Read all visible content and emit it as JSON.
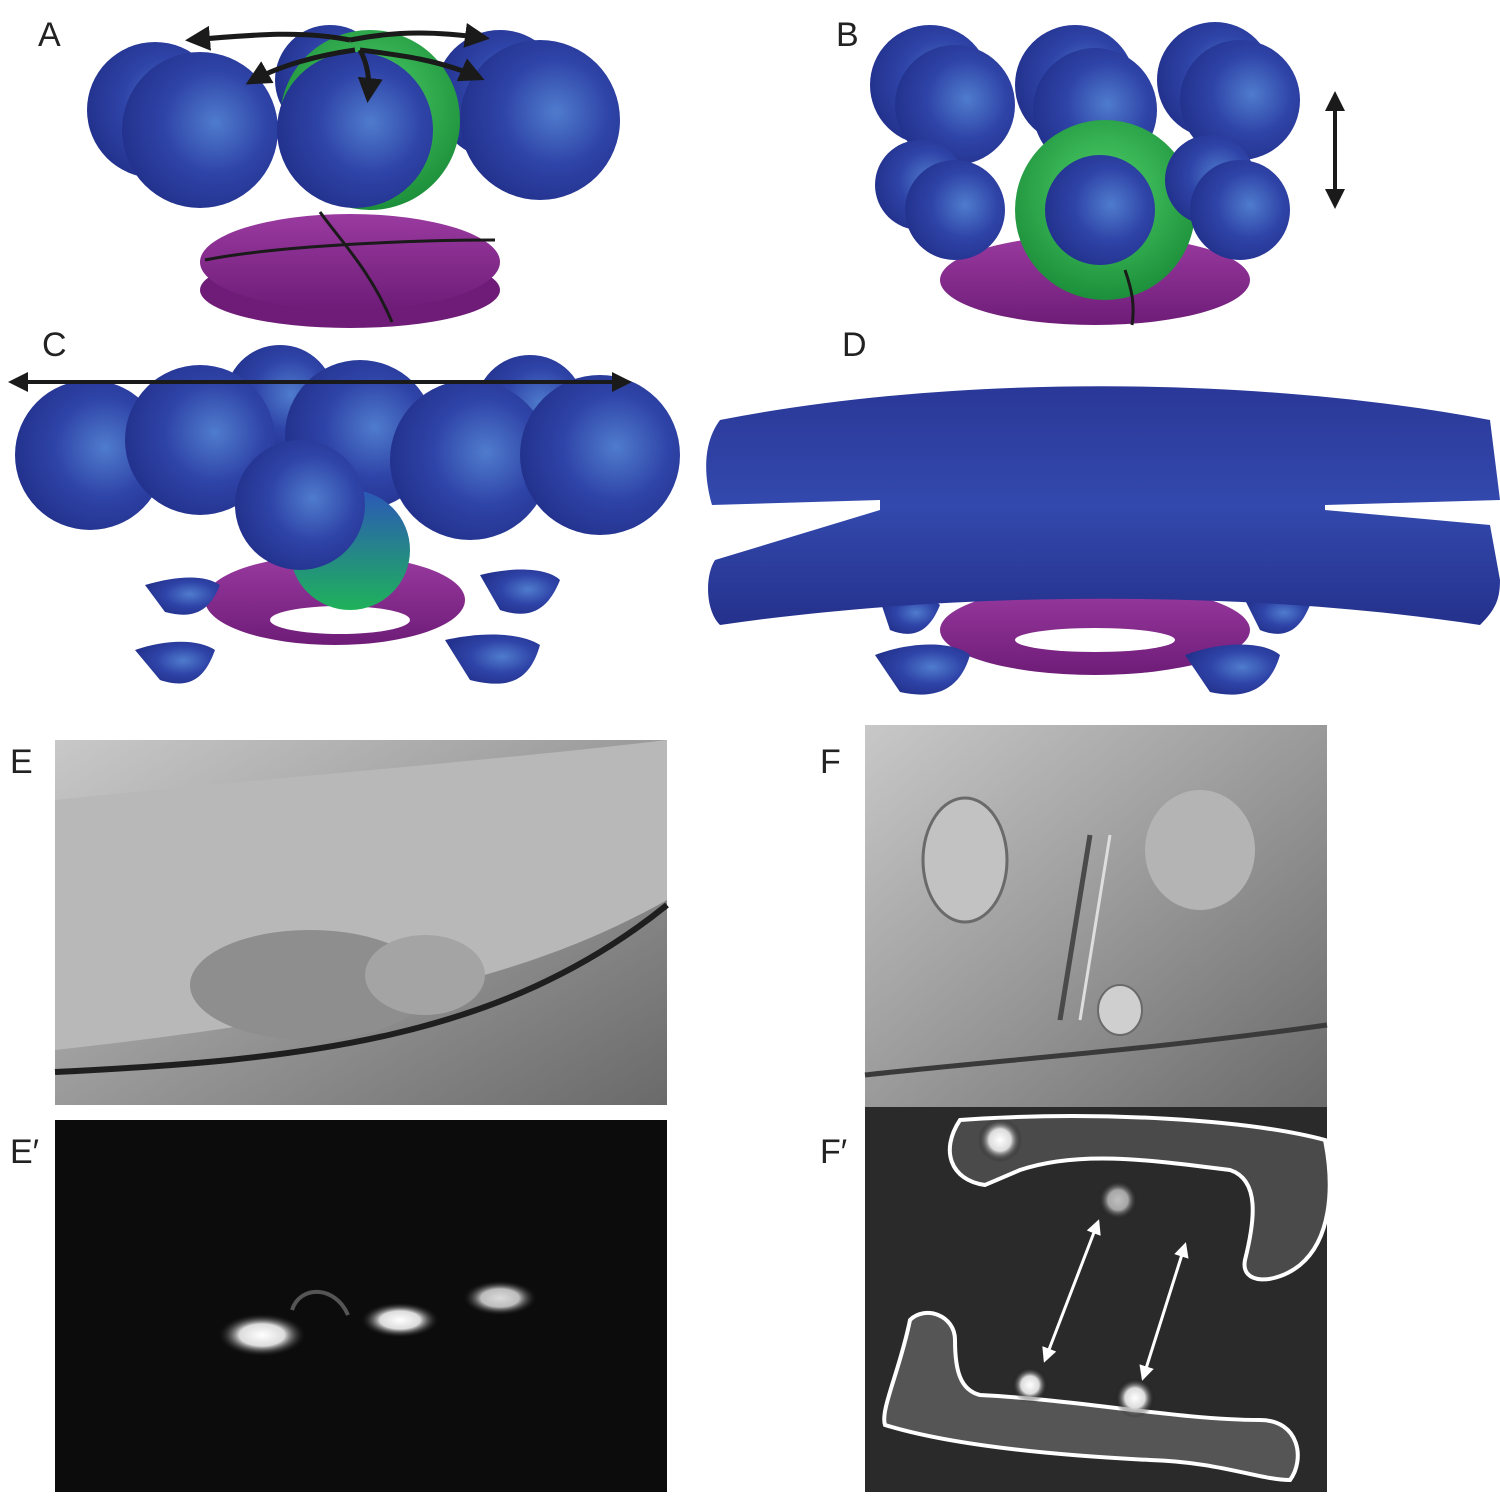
{
  "figure": {
    "panels": [
      {
        "id": "A",
        "label": "A"
      },
      {
        "id": "B",
        "label": "B"
      },
      {
        "id": "C",
        "label": "C"
      },
      {
        "id": "D",
        "label": "D"
      },
      {
        "id": "E",
        "label": "E"
      },
      {
        "id": "E_prime",
        "label": "E′"
      },
      {
        "id": "F",
        "label": "F"
      },
      {
        "id": "F_prime",
        "label": "F′"
      }
    ],
    "colors": {
      "cell_blue": "#2b3a9e",
      "cell_highlight": "#4a73c8",
      "green_cell": "#2aa84a",
      "ring_magenta": "#8a2a8e",
      "arrow": "#1a1a1a",
      "dic_gray": "#9a9a9a",
      "fluor_dark": "#0c0c0c"
    }
  }
}
